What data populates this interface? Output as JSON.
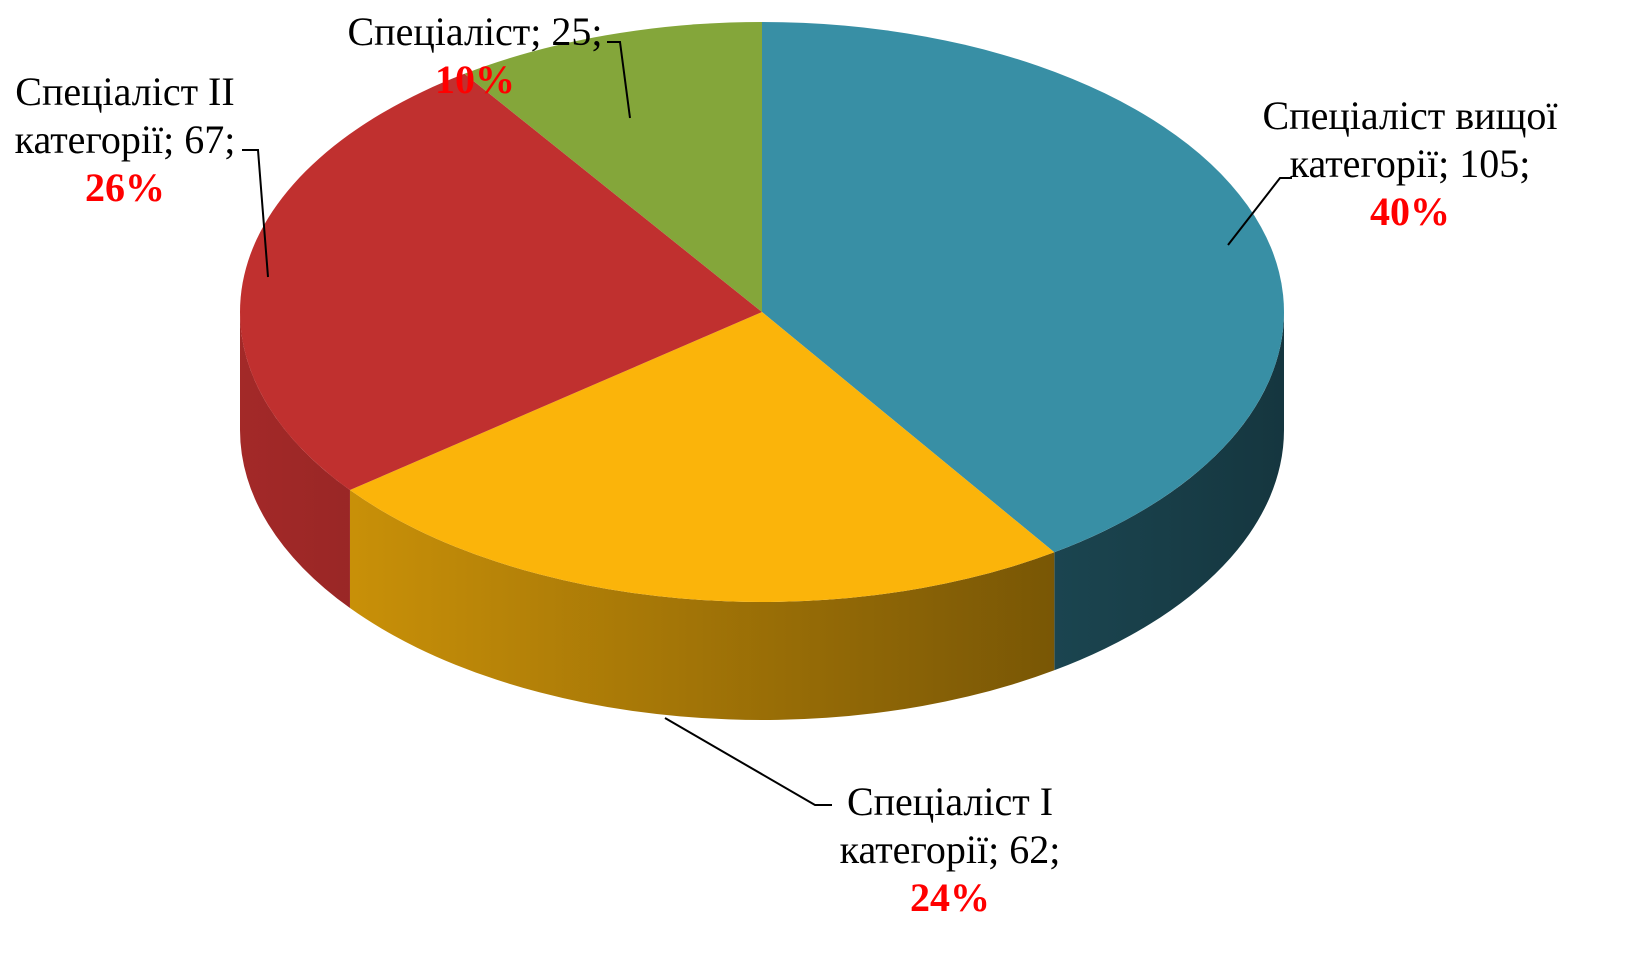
{
  "chart_data": {
    "type": "pie3d",
    "categories": [
      "Спеціаліст вищої категорії",
      "Спеціаліст І категорії",
      "Спеціаліст ІІ категорії",
      "Спеціаліст"
    ],
    "values": [
      105,
      62,
      67,
      25
    ],
    "percent_labels": [
      "40%",
      "24%",
      "26%",
      "10%"
    ],
    "separator": ";",
    "colors": [
      "#388fa5",
      "#fbb40a",
      "#c0302f",
      "#84a63a"
    ]
  }
}
